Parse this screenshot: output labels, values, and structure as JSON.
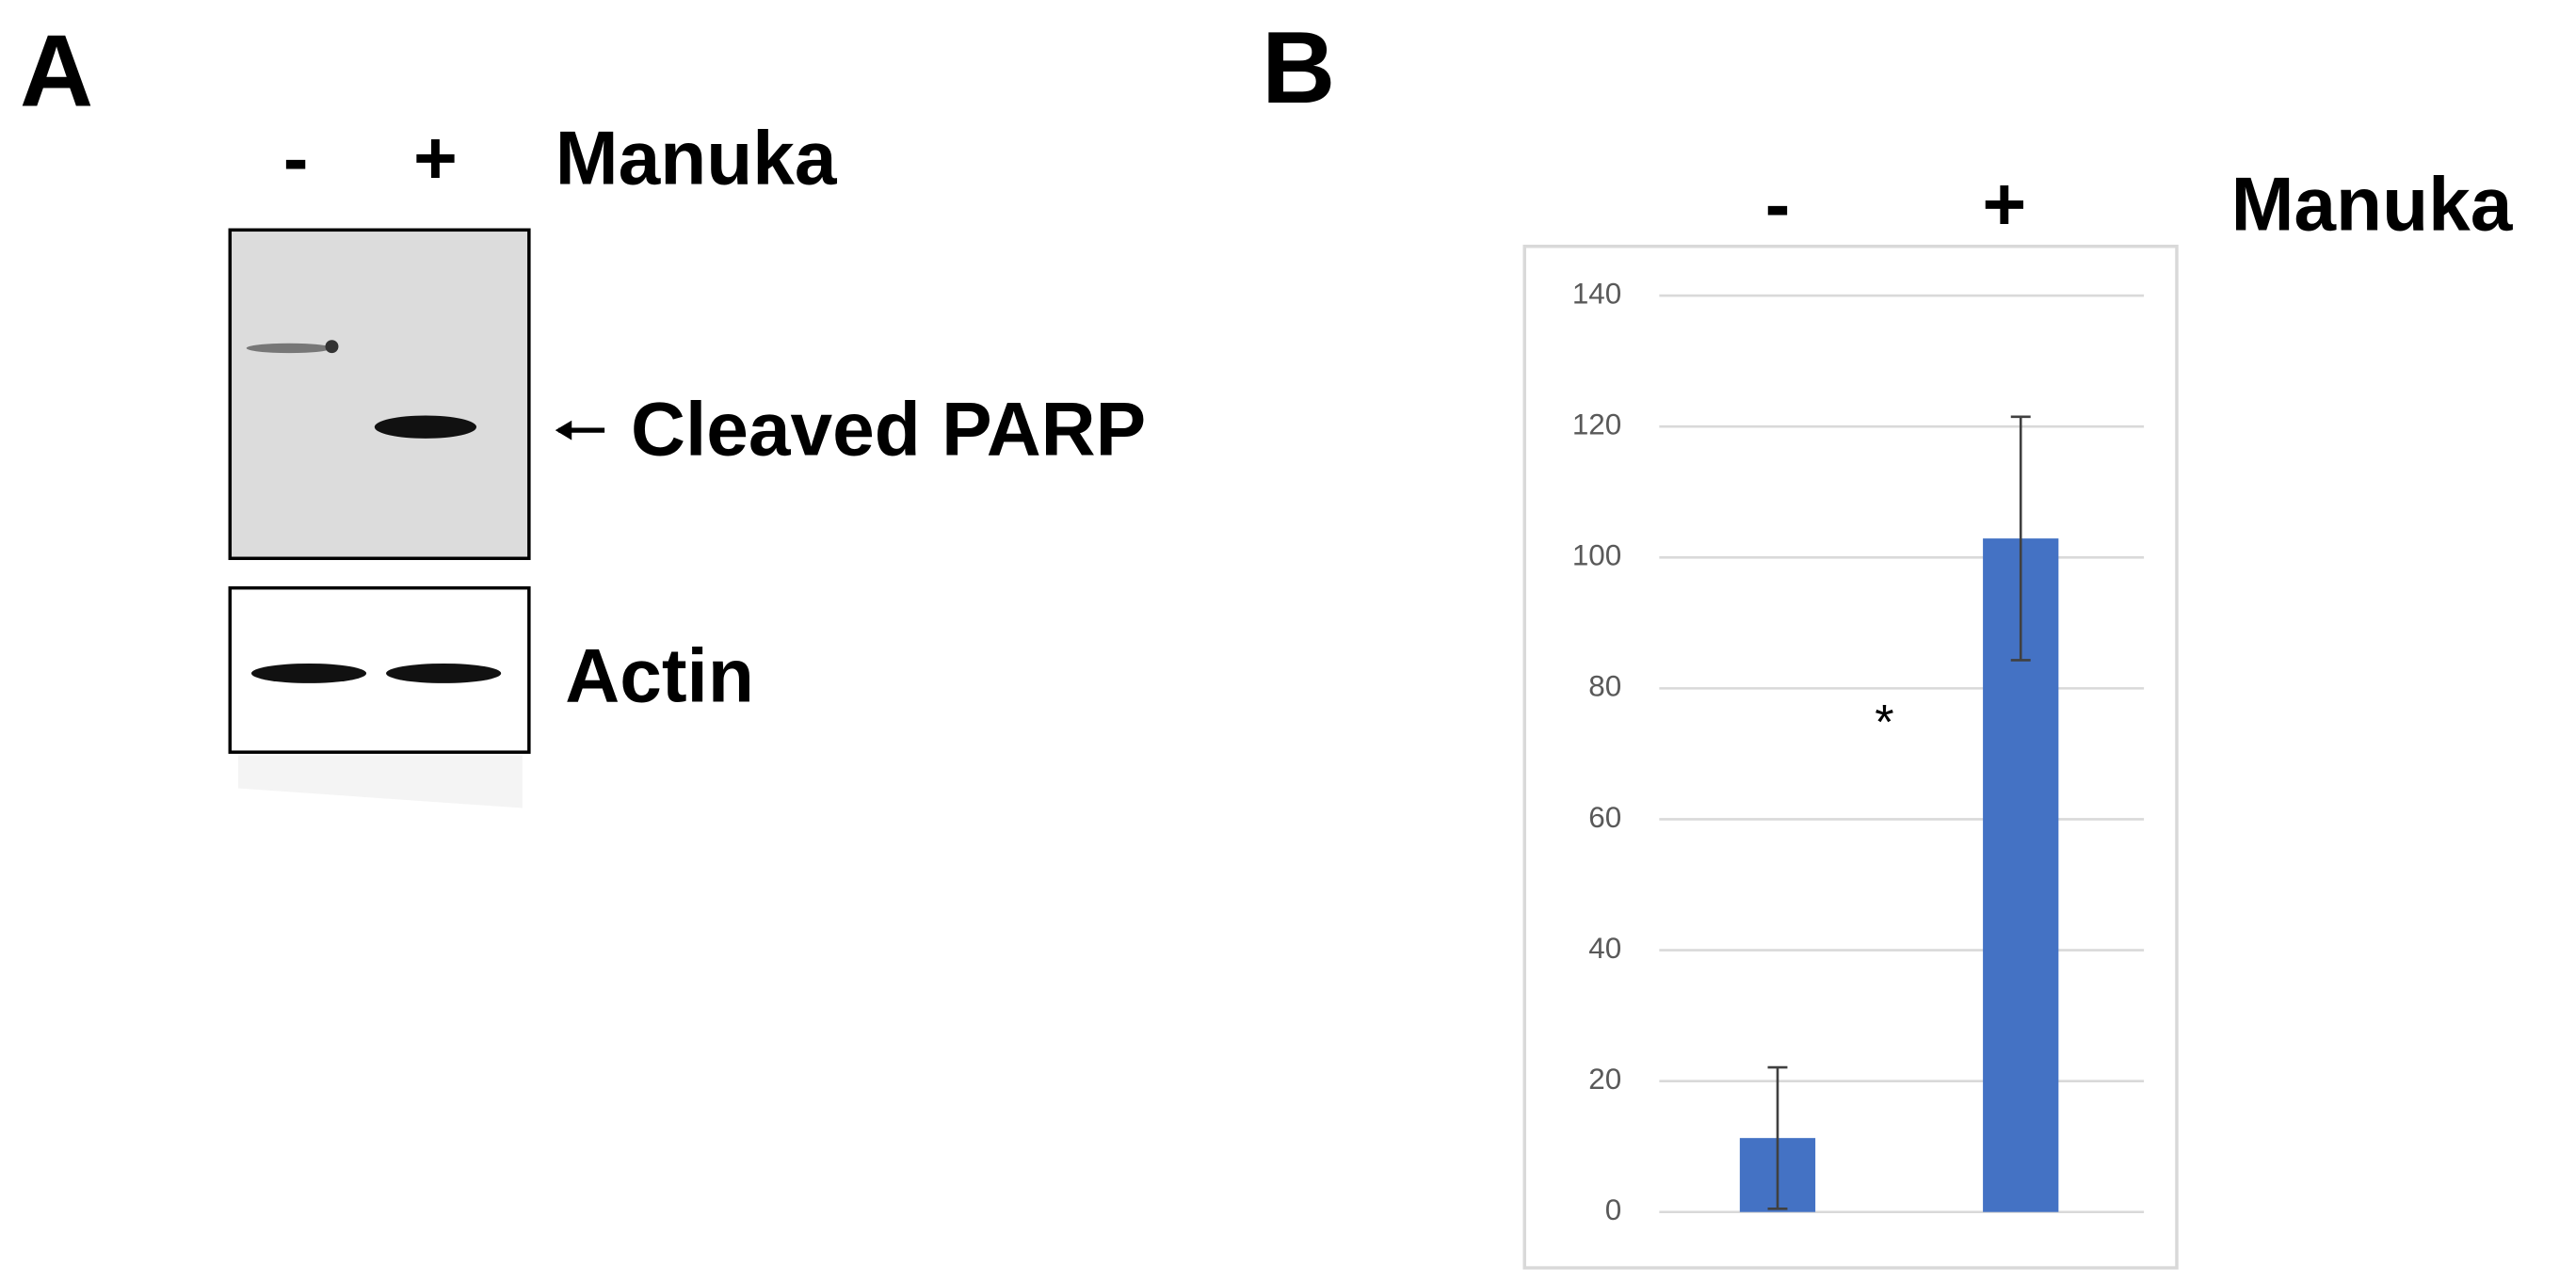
{
  "blot": {
    "label": "A",
    "lanes": [
      "-",
      "+"
    ],
    "treatment": "Manuka",
    "bands": [
      "Cleaved PARP",
      "Actin"
    ]
  },
  "chart_data": {
    "type": "bar",
    "label": "B",
    "categories": [
      "-",
      "+"
    ],
    "category_title": "Manuka",
    "values": [
      11.3,
      102.9
    ],
    "errors": [
      10.8,
      18.6
    ],
    "annotation": "*",
    "color": "#4472c4",
    "ylim": [
      0,
      140
    ],
    "yticks": [
      0,
      20,
      40,
      60,
      80,
      100,
      120,
      140
    ],
    "grid": true
  }
}
